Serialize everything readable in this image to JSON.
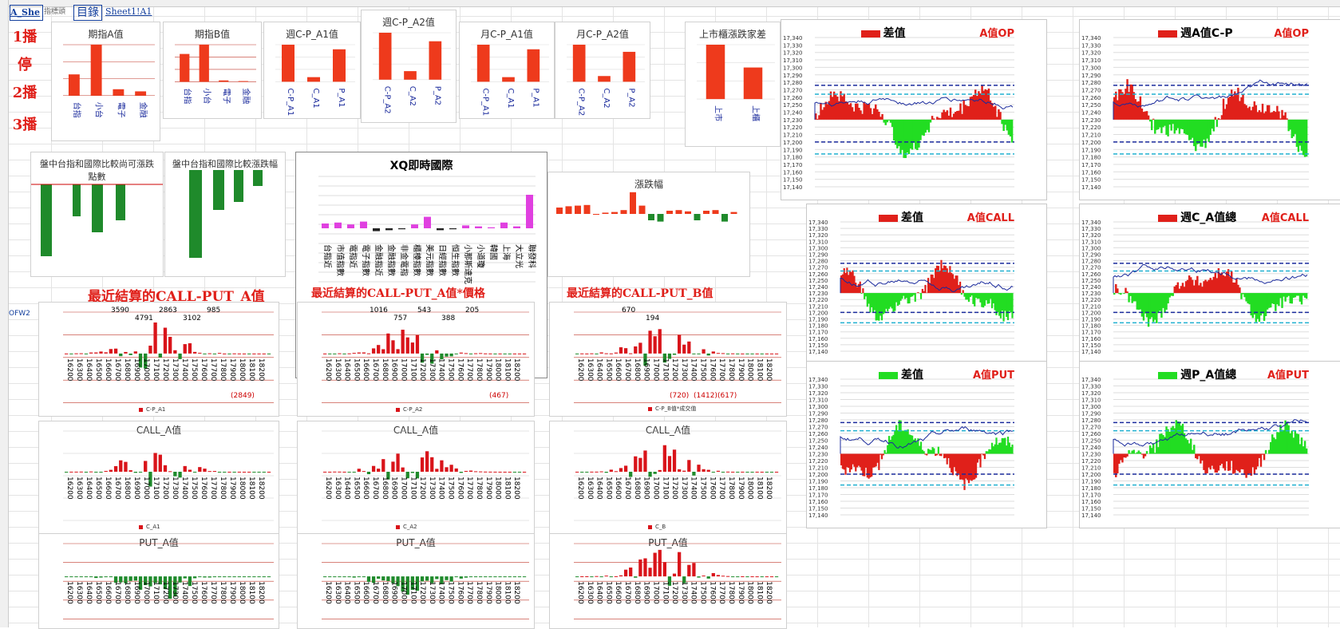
{
  "tabs": {
    "sheet": "A_She",
    "index": "指標頭",
    "menu": "目錄",
    "sheet1": "Sheet1!A1"
  },
  "side_buttons": [
    "1播",
    "停",
    "2播",
    "3播"
  ],
  "side_label": "OFW2",
  "colors": {
    "red": "#e0201a",
    "bar_red": "#ee3a1c",
    "green": "#1f8a2b",
    "bright_green": "#22dd22",
    "navy": "#1a2a9c",
    "magenta": "#e040e0",
    "cyan": "#20b0d0"
  },
  "top_charts": [
    {
      "title": "期指A值",
      "categories": [
        "台指",
        "小台",
        "電子",
        "金融"
      ],
      "values": [
        500,
        1200,
        150,
        100
      ]
    },
    {
      "title": "期指B值",
      "categories": [
        "台指",
        "小台",
        "電子",
        "金融"
      ],
      "values": [
        4200,
        5600,
        200,
        100
      ]
    },
    {
      "title": "週C-P_A1值",
      "categories": [
        "C-P_A1",
        "C_A1",
        "P_A1"
      ],
      "values": [
        25800,
        3200,
        22600
      ]
    },
    {
      "title": "週C-P_A2值",
      "categories": [
        "C-P_A2",
        "C_A2",
        "P_A2"
      ],
      "values": [
        2750,
        500,
        2250
      ]
    },
    {
      "title": "月C-P_A1值",
      "categories": [
        "C-P_A1",
        "C_A1",
        "P_A1"
      ],
      "values": [
        25800,
        3200,
        22600
      ]
    },
    {
      "title": "月C-P_A2值",
      "categories": [
        "C-P_A2",
        "C_A2",
        "P_A2"
      ],
      "values": [
        5200,
        800,
        4200
      ]
    },
    {
      "title": "上市櫃漲跌家差",
      "categories": [
        "上市",
        "上櫃"
      ],
      "values": [
        15.5,
        9
      ]
    }
  ],
  "mid_titles": {
    "compare": "盤中台指和國際比較尚可漲跌點數",
    "compare2": "盤中台指和國際比較漲跌幅",
    "xq": "XQ即時國際",
    "updown": "漲跌幅"
  },
  "xq_labels": [
    "台指近",
    "市值指數",
    "電指近",
    "電子指數",
    "金融指近",
    "金融指數",
    "非金電指",
    "櫃檯指數",
    "美元指數",
    "日經指數",
    "恒生指數",
    "小那斯達克",
    "小道瓊",
    "韓國",
    "上海",
    "大立光",
    "聯發科"
  ],
  "section_titles": {
    "s1": "最近結算的CALL-PUT_A值",
    "s2": "最近結算的CALL-PUT_A值*價格",
    "s3": "最近結算的CALL-PUT_B值"
  },
  "small_titles": {
    "call_a": "CALL_A值",
    "call_a2": "CALL_A值",
    "call_b": "CALL_A值",
    "put_a": "PUT_A值",
    "put_a2": "PUT_A值",
    "put_b": "PUT_A值"
  },
  "legends": {
    "l1": "C-P_A1",
    "l2": "C-P_A2",
    "l3": "C-P_B值*成交值",
    "l4": "C_A1",
    "l5": "C_A2",
    "l6": "C_B"
  },
  "big_panels": [
    {
      "title": "差值",
      "right": "A值OP",
      "legend_color": "#e0201a"
    },
    {
      "title": "週A值C-P",
      "right": "A值OP",
      "legend_color": "#e0201a"
    },
    {
      "title": "差值",
      "right": "A值CALL",
      "legend_color": "#e0201a"
    },
    {
      "title": "週C_A值總",
      "right": "A值CALL",
      "legend_color": "#e0201a"
    },
    {
      "title": "差值",
      "right": "A值PUT",
      "legend_color": "#22dd22"
    },
    {
      "title": "週P_A值總",
      "right": "A值PUT",
      "legend_color": "#22dd22"
    }
  ],
  "y_ticks": [
    "17,340",
    "17,330",
    "17,320",
    "17,310",
    "17,300",
    "17,290",
    "17,280",
    "17,270",
    "17,260",
    "17,250",
    "17,240",
    "17,230",
    "17,220",
    "17,210",
    "17,200",
    "17,190",
    "17,180",
    "17,170",
    "17,160",
    "17,150",
    "17,140"
  ],
  "strike_labels": [
    "16200",
    "16300",
    "16400",
    "16500",
    "16600",
    "16700",
    "16800",
    "16900",
    "17000",
    "17100",
    "17200",
    "17300",
    "17400",
    "17500",
    "17600",
    "17700",
    "17800",
    "17900",
    "18000",
    "18100",
    "18200"
  ],
  "annotations": {
    "s1": [
      "3590",
      "4791",
      "2863",
      "3102",
      "985",
      "(2849)"
    ],
    "s2": [
      "1016",
      "757",
      "543",
      "388",
      "205",
      "(467)"
    ],
    "s3": [
      "670",
      "194",
      "(720)",
      "(1412)",
      "(617)"
    ]
  }
}
